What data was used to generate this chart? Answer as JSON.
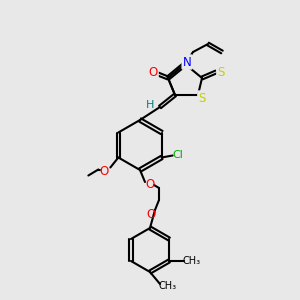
{
  "bg_color": "#e8e8e8",
  "bond_color": "#000000",
  "bond_lw": 1.5,
  "font_size": 7.5,
  "colors": {
    "O": "#ff0000",
    "N": "#0000ff",
    "S": "#cccc00",
    "Cl": "#00b000",
    "H": "#008080",
    "C": "#000000"
  }
}
